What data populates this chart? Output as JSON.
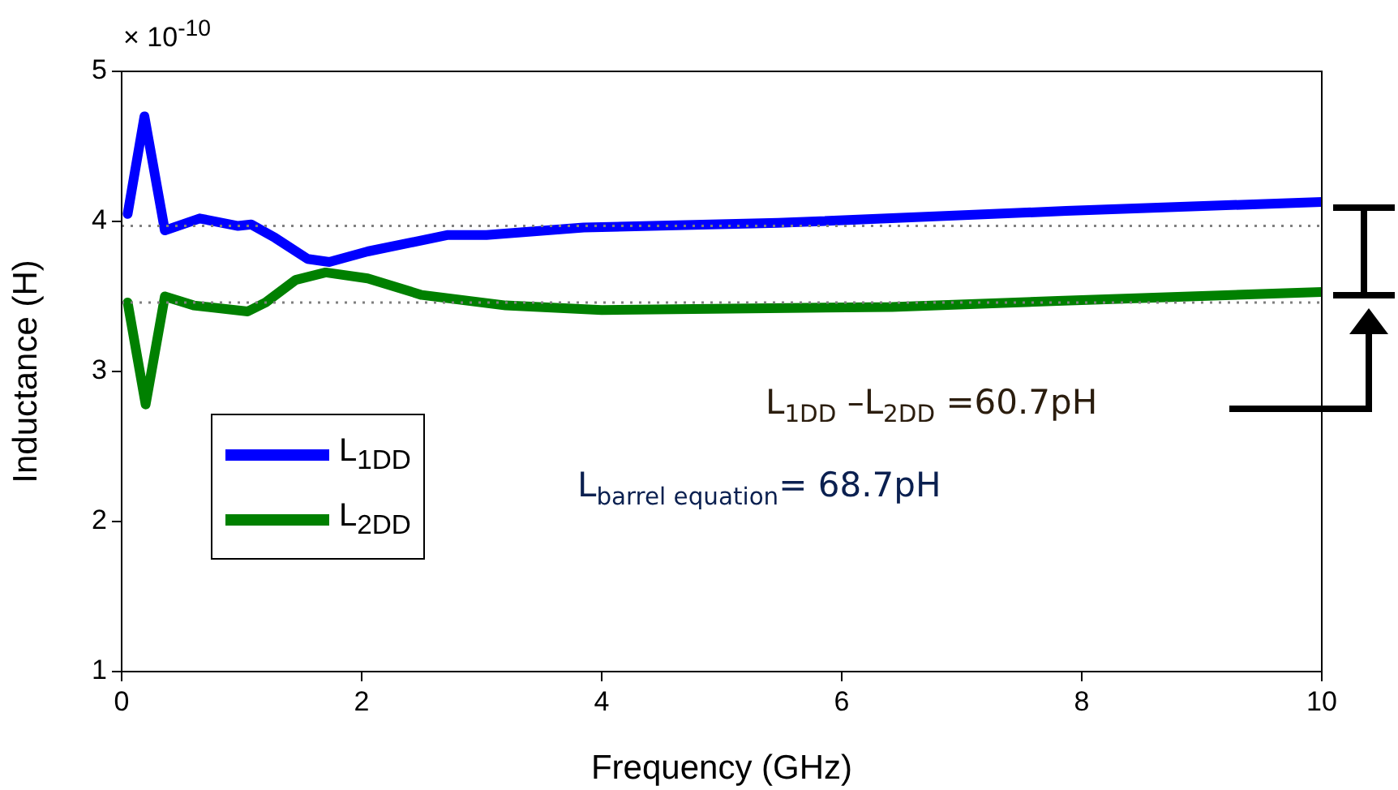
{
  "chart_data": {
    "type": "line",
    "xlabel": "Frequency (GHz)",
    "ylabel": "Inductance (H)",
    "xlim": [
      0,
      10
    ],
    "xticks": [
      0,
      2,
      4,
      6,
      8,
      10
    ],
    "ylim": [
      1,
      5
    ],
    "yticks": [
      1,
      2,
      3,
      4,
      5
    ],
    "grid": false,
    "legend": "left",
    "line_style": "solid",
    "marker": "none",
    "series": [
      {
        "name": "L$_{1DD}$",
        "color": "#0000ff",
        "x": [
          0.05,
          0.19,
          0.36,
          0.65,
          0.97,
          1.08,
          1.28,
          1.55,
          1.73,
          2.05,
          2.72,
          3.04,
          3.85,
          5.47,
          7.87,
          10
        ],
        "values": [
          4.05,
          4.7,
          3.94,
          4.02,
          3.97,
          3.98,
          3.89,
          3.75,
          3.73,
          3.8,
          3.91,
          3.91,
          3.96,
          3.99,
          4.07,
          4.13
        ]
      },
      {
        "name": "L$_{2DD}$",
        "color": "#008000",
        "x": [
          0.05,
          0.2,
          0.36,
          0.6,
          1.05,
          1.2,
          1.45,
          1.7,
          2.05,
          2.5,
          3.2,
          4.0,
          6.42,
          7.8,
          10
        ],
        "values": [
          3.46,
          2.78,
          3.5,
          3.44,
          3.4,
          3.46,
          3.61,
          3.66,
          3.62,
          3.51,
          3.44,
          3.41,
          3.43,
          3.47,
          3.53
        ]
      }
    ],
    "ref_lines": [
      {
        "axis": "y",
        "value": 3.97,
        "color": "#808080",
        "line_style": "dotted"
      },
      {
        "axis": "y",
        "value": 3.46,
        "color": "#808080",
        "line_style": "dotted"
      }
    ],
    "annotations": [
      "× 10$^{-10}$",
      "L$_{1DD}$ –L$_{2DD}$ =60.7pH",
      "L$_{barrel equation}$= 68.7pH"
    ]
  }
}
